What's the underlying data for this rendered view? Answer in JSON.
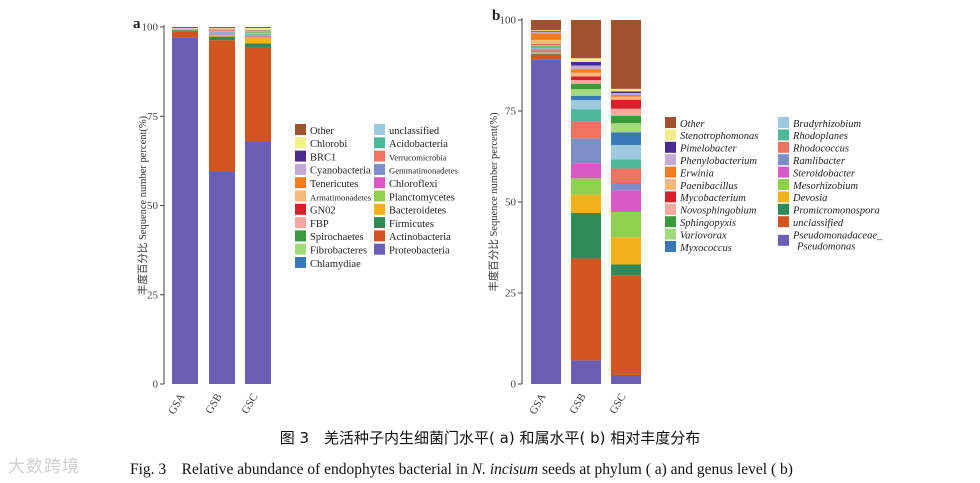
{
  "figure": {
    "caption_cn": "图 3　羌活种子内生细菌门水平( a) 和属水平( b) 相对丰度分布",
    "caption_en_prefix": "Fig. 3　Relative abundance of endophytes bacterial in ",
    "caption_en_species": "N. incisum",
    "caption_en_suffix": " seeds at phylum ( a)  and genus level ( b)",
    "watermark": "大数跨境"
  },
  "chart_data": [
    {
      "panel": "a",
      "type": "bar",
      "stacked": true,
      "ylabel": "丰度百分比 Sequence number percent(%)",
      "ylim": [
        0,
        100
      ],
      "yticks": [
        0,
        25,
        50,
        75,
        100
      ],
      "categories": [
        "GSA",
        "GSB",
        "GSC"
      ],
      "series": [
        {
          "name": "Proteobacteria",
          "color": "#6A5FB5",
          "values": [
            97.0,
            59.5,
            68.0
          ]
        },
        {
          "name": "Actinobacteria",
          "color": "#D2541F",
          "values": [
            1.6,
            37.0,
            26.5
          ]
        },
        {
          "name": "Firmicutes",
          "color": "#2E8B57",
          "values": [
            0.4,
            1.0,
            1.0
          ]
        },
        {
          "name": "Bacteroidetes",
          "color": "#F2B21B",
          "values": [
            0.1,
            0.3,
            1.5
          ]
        },
        {
          "name": "Planctomycetes",
          "color": "#8FD14F",
          "values": [
            0.1,
            0.2,
            0.4
          ]
        },
        {
          "name": "Chloroflexi",
          "color": "#D959C7",
          "values": [
            0.0,
            0.1,
            0.2
          ]
        },
        {
          "name": "Gemmatimonadetes",
          "color": "#7E8EC7",
          "values": [
            0.0,
            0.1,
            0.1
          ]
        },
        {
          "name": "Verrucomicrobia",
          "color": "#F07261",
          "values": [
            0.0,
            0.1,
            0.1
          ]
        },
        {
          "name": "Acidobacteria",
          "color": "#4DB89A",
          "values": [
            0.1,
            0.2,
            0.3
          ]
        },
        {
          "name": "unclassified",
          "color": "#9CC9E0",
          "values": [
            0.1,
            0.2,
            0.3
          ]
        },
        {
          "name": "Chlamydiae",
          "color": "#3A79B8",
          "values": [
            0.0,
            0.1,
            0.1
          ]
        },
        {
          "name": "Fibrobacteres",
          "color": "#A4D97E",
          "values": [
            0.0,
            0.1,
            0.1
          ]
        },
        {
          "name": "Spirochaetes",
          "color": "#3B9A3B",
          "values": [
            0.0,
            0.1,
            0.1
          ]
        },
        {
          "name": "FBP",
          "color": "#F7A8A0",
          "values": [
            0.0,
            0.1,
            0.1
          ]
        },
        {
          "name": "GN02",
          "color": "#D7212A",
          "values": [
            0.0,
            0.1,
            0.1
          ]
        },
        {
          "name": "Armatimonadetes",
          "color": "#F5B97A",
          "values": [
            0.0,
            0.1,
            0.1
          ]
        },
        {
          "name": "Tenericutes",
          "color": "#F47C1E",
          "values": [
            0.0,
            0.1,
            0.1
          ]
        },
        {
          "name": "Cyanobacteria",
          "color": "#C4AAD6",
          "values": [
            0.1,
            0.2,
            0.1
          ]
        },
        {
          "name": "BRC1",
          "color": "#4A2C8F",
          "values": [
            0.0,
            0.1,
            0.1
          ]
        },
        {
          "name": "Chlorobi",
          "color": "#F2EE8A",
          "values": [
            0.1,
            0.2,
            0.5
          ]
        },
        {
          "name": "Other",
          "color": "#A0522D",
          "values": [
            0.3,
            0.3,
            0.3
          ]
        }
      ],
      "legend_columns": [
        [
          "Other",
          "Chlorobi",
          "BRC1",
          "Cyanobacteria",
          "Tenericutes",
          "Armatimonadetes",
          "GN02",
          "FBP",
          "Spirochaetes",
          "Fibrobacteres",
          "Chlamydiae"
        ],
        [
          "unclassified",
          "Acidobacteria",
          "Verrucomicrobia",
          "Gemmatimonadetes",
          "Chloroflexi",
          "Planctomycetes",
          "Bacteroidetes",
          "Firmicutes",
          "Actinobacteria",
          "Proteobacteria"
        ]
      ]
    },
    {
      "panel": "b",
      "type": "bar",
      "stacked": true,
      "ylabel": "丰度百分比 Sequence number percent(%)",
      "ylim": [
        0,
        100
      ],
      "yticks": [
        0,
        25,
        50,
        75,
        100
      ],
      "categories": [
        "GSA",
        "GSB",
        "GSC"
      ],
      "series": [
        {
          "name": "Pseudomonadaceae_ Pseudomonas",
          "color": "#6A5FB5",
          "values": [
            89.5,
            6.5,
            2.5
          ]
        },
        {
          "name": "unclassified",
          "color": "#D2541F",
          "values": [
            1.5,
            28.0,
            27.5
          ]
        },
        {
          "name": "Promicromonospora",
          "color": "#2E8B57",
          "values": [
            0.2,
            12.5,
            3.0
          ]
        },
        {
          "name": "Devosia",
          "color": "#F2B21B",
          "values": [
            0.2,
            5.0,
            7.5
          ]
        },
        {
          "name": "Mesorhizobium",
          "color": "#8FD14F",
          "values": [
            0.2,
            4.5,
            7.0
          ]
        },
        {
          "name": "Steroidobacter",
          "color": "#D959C7",
          "values": [
            0.2,
            4.0,
            6.0
          ]
        },
        {
          "name": "Ramlibacter",
          "color": "#7E8EC7",
          "values": [
            0.2,
            7.0,
            2.0
          ]
        },
        {
          "name": "Rhodococcus",
          "color": "#F07261",
          "values": [
            0.3,
            4.5,
            4.0
          ]
        },
        {
          "name": "Rhodoplanes",
          "color": "#4DB89A",
          "values": [
            0.2,
            3.5,
            2.5
          ]
        },
        {
          "name": "Bradyrhizobium",
          "color": "#9CC9E0",
          "values": [
            0.2,
            2.5,
            4.0
          ]
        },
        {
          "name": "Myxococcus",
          "color": "#3A79B8",
          "values": [
            0.2,
            1.2,
            3.5
          ]
        },
        {
          "name": "Variovorax",
          "color": "#A4D97E",
          "values": [
            0.3,
            1.8,
            2.5
          ]
        },
        {
          "name": "Sphingopyxis",
          "color": "#3B9A3B",
          "values": [
            0.2,
            1.5,
            2.0
          ]
        },
        {
          "name": "Novosphingobium",
          "color": "#F7A8A0",
          "values": [
            0.2,
            1.0,
            2.0
          ]
        },
        {
          "name": "Mycobacterium",
          "color": "#D7212A",
          "values": [
            0.2,
            1.0,
            2.5
          ]
        },
        {
          "name": "Paenibacillus",
          "color": "#F5B97A",
          "values": [
            1.2,
            1.0,
            0.8
          ]
        },
        {
          "name": "Erwinia",
          "color": "#F47C1E",
          "values": [
            1.8,
            1.0,
            0.5
          ]
        },
        {
          "name": "Phenylobacterium",
          "color": "#C4AAD6",
          "values": [
            0.5,
            1.0,
            0.5
          ]
        },
        {
          "name": "Pimelobacter",
          "color": "#4A2C8F",
          "values": [
            0.2,
            1.0,
            0.5
          ]
        },
        {
          "name": "Stenotrophomonas",
          "color": "#F2EE8A",
          "values": [
            0.2,
            1.0,
            0.7
          ]
        },
        {
          "name": "Other",
          "color": "#A0522D",
          "values": [
            2.8,
            10.5,
            19.0
          ]
        }
      ],
      "legend_columns": [
        [
          "Other",
          "Stenotrophomonas",
          "Pimelobacter",
          "Phenylobacterium",
          "Erwinia",
          "Paenibacillus",
          "Mycobacterium",
          "Novosphingobium",
          "Sphingopyxis",
          "Variovorax",
          "Myxococcus"
        ],
        [
          "Bradyrhizobium",
          "Rhodoplanes",
          "Rhodococcus",
          "Ramlibacter",
          "Steroidobacter",
          "Mesorhizobium",
          "Devosia",
          "Promicromonospora",
          "unclassified",
          "Pseudomonadaceae_ Pseudomonas"
        ]
      ],
      "legend_italic": true
    }
  ]
}
